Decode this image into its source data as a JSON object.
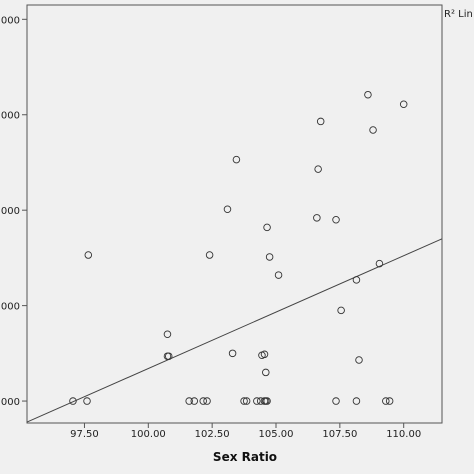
{
  "chart_data": {
    "type": "scatter",
    "title": "",
    "xlabel": "Sex Ratio",
    "ylabel": "",
    "xlim": [
      95.25,
      111.5
    ],
    "ylim": [
      -2.3,
      41.5
    ],
    "x_ticks": [
      97.5,
      100.0,
      102.5,
      105.0,
      107.5,
      110.0
    ],
    "x_tick_labels": [
      "97.50",
      "100.00",
      "102.50",
      "105.00",
      "107.50",
      "110.00"
    ],
    "y_ticks": [
      0,
      10,
      20,
      30,
      40
    ],
    "y_tick_labels": [
      "000",
      "000",
      "000",
      "000",
      "000"
    ],
    "legend_text": "R² Lin",
    "legend_position": "top-right, clipped",
    "grid": false,
    "fit_line": {
      "x": [
        95.25,
        111.5
      ],
      "y": [
        -2.2,
        17.0
      ]
    },
    "points": [
      {
        "x": 97.05,
        "y": 0
      },
      {
        "x": 97.6,
        "y": 0
      },
      {
        "x": 97.65,
        "y": 15.3
      },
      {
        "x": 100.75,
        "y": 7.0
      },
      {
        "x": 100.75,
        "y": 4.7
      },
      {
        "x": 100.8,
        "y": 4.7
      },
      {
        "x": 101.6,
        "y": 0
      },
      {
        "x": 101.8,
        "y": 0
      },
      {
        "x": 102.15,
        "y": 0
      },
      {
        "x": 102.3,
        "y": 0
      },
      {
        "x": 102.4,
        "y": 15.3
      },
      {
        "x": 103.1,
        "y": 20.1
      },
      {
        "x": 103.3,
        "y": 5.0
      },
      {
        "x": 103.45,
        "y": 25.3
      },
      {
        "x": 103.75,
        "y": 0
      },
      {
        "x": 103.85,
        "y": 0
      },
      {
        "x": 104.25,
        "y": 0
      },
      {
        "x": 104.4,
        "y": 0
      },
      {
        "x": 104.45,
        "y": 4.8
      },
      {
        "x": 104.55,
        "y": 4.9
      },
      {
        "x": 104.55,
        "y": 0
      },
      {
        "x": 104.6,
        "y": 0
      },
      {
        "x": 104.6,
        "y": 3.0
      },
      {
        "x": 104.65,
        "y": 0
      },
      {
        "x": 104.65,
        "y": 18.2
      },
      {
        "x": 104.75,
        "y": 15.1
      },
      {
        "x": 105.1,
        "y": 13.2
      },
      {
        "x": 106.6,
        "y": 19.2
      },
      {
        "x": 106.65,
        "y": 24.3
      },
      {
        "x": 106.75,
        "y": 29.3
      },
      {
        "x": 107.35,
        "y": 19.0
      },
      {
        "x": 107.35,
        "y": 0
      },
      {
        "x": 107.55,
        "y": 9.5
      },
      {
        "x": 108.15,
        "y": 0
      },
      {
        "x": 108.15,
        "y": 12.7
      },
      {
        "x": 108.25,
        "y": 4.3
      },
      {
        "x": 108.6,
        "y": 32.1
      },
      {
        "x": 108.8,
        "y": 28.4
      },
      {
        "x": 109.05,
        "y": 14.4
      },
      {
        "x": 109.3,
        "y": 0
      },
      {
        "x": 109.45,
        "y": 0
      },
      {
        "x": 110.0,
        "y": 31.1
      }
    ]
  }
}
